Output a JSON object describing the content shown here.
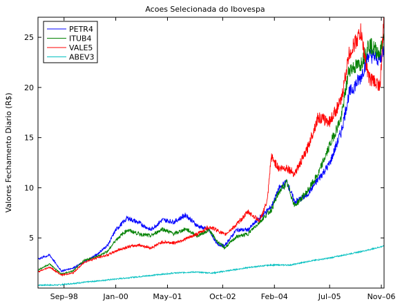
{
  "chart_data": {
    "type": "line",
    "title": "Acoes Selecionada do Ibovespa",
    "xlabel": "",
    "ylabel": "Valores Fechamento Diario (R$)",
    "ylim": [
      0,
      27
    ],
    "yticks": [
      5,
      10,
      15,
      20,
      25
    ],
    "xticks": [
      "Sep–98",
      "Jan–00",
      "May–01",
      "Oct–02",
      "Feb–04",
      "Jul–05",
      "Nov–06"
    ],
    "xtick_positions": [
      1998.67,
      2000.0,
      2001.33,
      2002.75,
      2004.08,
      2005.5,
      2006.83
    ],
    "xlim": [
      1998.0,
      2006.9
    ],
    "grid": false,
    "legend_position": "top-left",
    "series": [
      {
        "name": "PETR4",
        "color": "#0000ff",
        "x": [
          1998.0,
          1998.3,
          1998.6,
          1998.9,
          1999.2,
          1999.5,
          1999.8,
          2000.0,
          2000.3,
          2000.6,
          2000.9,
          2001.2,
          2001.5,
          2001.8,
          2002.1,
          2002.4,
          2002.6,
          2002.8,
          2003.1,
          2003.4,
          2003.7,
          2004.0,
          2004.2,
          2004.4,
          2004.6,
          2004.9,
          2005.2,
          2005.5,
          2005.8,
          2006.0,
          2006.3,
          2006.5,
          2006.8,
          2006.9
        ],
        "values": [
          2.9,
          3.3,
          1.7,
          2.0,
          2.6,
          3.3,
          4.3,
          5.8,
          7.0,
          6.5,
          5.8,
          6.8,
          6.6,
          7.3,
          6.2,
          5.8,
          4.4,
          4.2,
          5.8,
          5.8,
          7.0,
          8.1,
          9.9,
          10.6,
          8.6,
          9.2,
          10.8,
          12.4,
          15.6,
          19.4,
          21.0,
          23.3,
          22.8,
          24.0
        ]
      },
      {
        "name": "ITUB4",
        "color": "#008000",
        "x": [
          1998.0,
          1998.3,
          1998.6,
          1998.9,
          1999.2,
          1999.5,
          1999.8,
          2000.0,
          2000.3,
          2000.6,
          2000.9,
          2001.2,
          2001.5,
          2001.8,
          2002.1,
          2002.4,
          2002.6,
          2002.8,
          2003.1,
          2003.4,
          2003.7,
          2004.0,
          2004.2,
          2004.4,
          2004.6,
          2004.9,
          2005.2,
          2005.5,
          2005.8,
          2006.0,
          2006.3,
          2006.5,
          2006.8,
          2006.9
        ],
        "values": [
          1.8,
          2.4,
          1.4,
          1.7,
          2.8,
          3.1,
          3.7,
          4.8,
          5.8,
          5.4,
          5.2,
          5.9,
          5.4,
          5.9,
          5.2,
          5.8,
          4.7,
          4.0,
          5.1,
          5.4,
          6.6,
          7.8,
          9.6,
          10.5,
          8.2,
          9.5,
          11.3,
          14.2,
          17.0,
          21.8,
          22.3,
          24.3,
          23.4,
          25.3
        ]
      },
      {
        "name": "VALE5",
        "color": "#ff0000",
        "x": [
          1998.0,
          1998.3,
          1998.6,
          1998.9,
          1999.2,
          1999.5,
          1999.8,
          2000.0,
          2000.3,
          2000.6,
          2000.9,
          2001.2,
          2001.5,
          2001.8,
          2002.1,
          2002.4,
          2002.6,
          2002.8,
          2003.1,
          2003.4,
          2003.7,
          2003.9,
          2004.0,
          2004.2,
          2004.4,
          2004.6,
          2004.9,
          2005.2,
          2005.5,
          2005.8,
          2006.0,
          2006.3,
          2006.5,
          2006.8,
          2006.9
        ],
        "values": [
          1.6,
          2.1,
          1.3,
          1.5,
          2.6,
          3.0,
          3.3,
          3.7,
          4.1,
          4.3,
          4.0,
          4.6,
          4.5,
          4.9,
          5.4,
          6.1,
          5.8,
          5.3,
          6.3,
          7.6,
          6.7,
          8.7,
          13.1,
          11.9,
          12.0,
          11.4,
          13.6,
          17.0,
          16.6,
          18.7,
          23.3,
          25.5,
          21.0,
          20.2,
          27.0
        ]
      },
      {
        "name": "ABEV3",
        "color": "#00bfbf",
        "x": [
          1998.0,
          1998.5,
          1999.0,
          1999.5,
          2000.0,
          2000.5,
          2001.0,
          2001.5,
          2002.0,
          2002.5,
          2003.0,
          2003.5,
          2004.0,
          2004.5,
          2005.0,
          2005.5,
          2006.0,
          2006.5,
          2006.9
        ],
        "values": [
          0.3,
          0.3,
          0.5,
          0.7,
          0.9,
          1.1,
          1.3,
          1.5,
          1.6,
          1.5,
          1.8,
          2.1,
          2.3,
          2.3,
          2.7,
          3.0,
          3.4,
          3.8,
          4.2
        ]
      }
    ]
  }
}
